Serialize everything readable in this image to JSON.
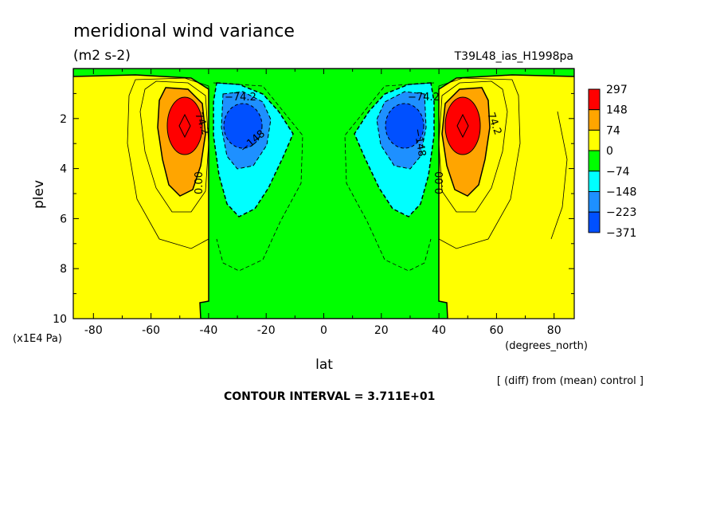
{
  "chart_data": {
    "type": "heatmap",
    "title": "meridional wind variance",
    "units": "(m2 s-2)",
    "run_label": "T39L48_ias_H1998pa",
    "xlabel": "lat",
    "x_units": "(degrees_north)",
    "ylabel": "plev",
    "y_units": "(x1E4 Pa)",
    "xlim": [
      -87,
      87
    ],
    "ylim": [
      10,
      0
    ],
    "x_ticks": [
      -80,
      -60,
      -40,
      -20,
      0,
      20,
      40,
      60,
      80
    ],
    "y_ticks": [
      2,
      4,
      6,
      8,
      10
    ],
    "colorbar": {
      "labels": [
        "297",
        "148",
        "74",
        "0",
        "−74",
        "−148",
        "−223",
        "−371"
      ],
      "colors": [
        "#ff0000",
        "#ffa500",
        "#ffff00",
        "#00ff00",
        "#00ffff",
        "#1e90ff",
        "#0050ff"
      ]
    },
    "contour_labels": [
      "74.2",
      "−74.2",
      "−148",
      "0.00"
    ],
    "contour_interval_label": "CONTOUR INTERVAL = 3.711E+01",
    "note": "[ (diff) from (mean) control ]",
    "features": [
      {
        "lat": -50,
        "plev": 2.6,
        "peak": 297
      },
      {
        "lat": 50,
        "plev": 2.6,
        "peak": 297
      },
      {
        "lat": -30,
        "plev": 2.5,
        "peak": -371
      },
      {
        "lat": 30,
        "plev": 2.5,
        "peak": -371
      }
    ]
  }
}
